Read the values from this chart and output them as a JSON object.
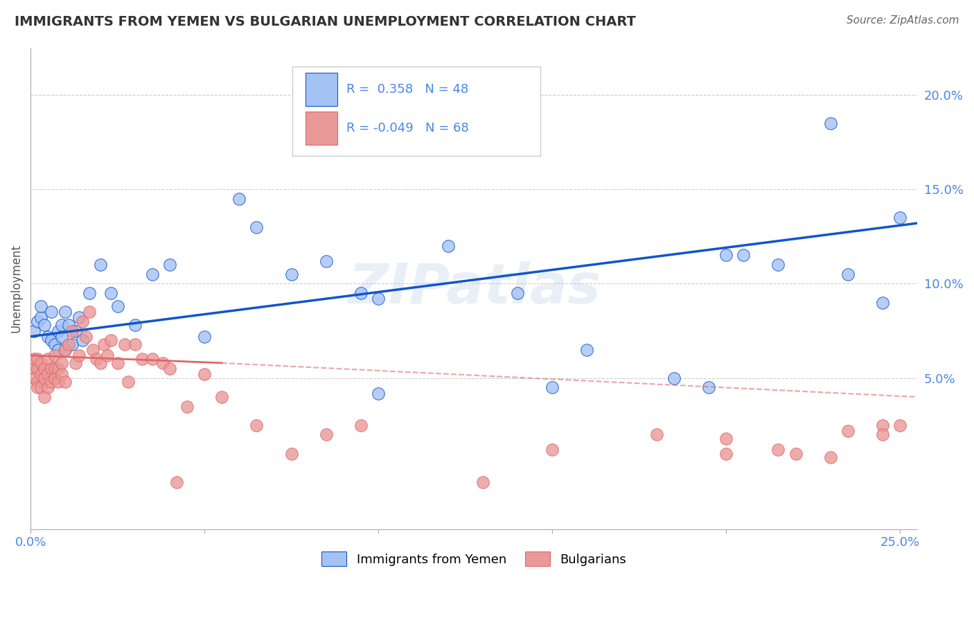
{
  "title": "IMMIGRANTS FROM YEMEN VS BULGARIAN UNEMPLOYMENT CORRELATION CHART",
  "source": "Source: ZipAtlas.com",
  "ylabel": "Unemployment",
  "xlim": [
    0.0,
    0.255
  ],
  "ylim": [
    -0.03,
    0.225
  ],
  "x_tick_positions": [
    0.0,
    0.25
  ],
  "x_tick_labels": [
    "0.0%",
    "25.0%"
  ],
  "y_tick_labels_right": [
    "5.0%",
    "10.0%",
    "15.0%",
    "20.0%"
  ],
  "y_tick_values_right": [
    0.05,
    0.1,
    0.15,
    0.2
  ],
  "legend_label_1": "Immigrants from Yemen",
  "legend_label_2": "Bulgarians",
  "r1": "0.358",
  "n1": "48",
  "r2": "-0.049",
  "n2": "68",
  "color_yemen": "#a4c2f4",
  "color_bulgarian": "#ea9999",
  "color_line_yemen": "#1155cc",
  "color_line_bulgarian": "#e06666",
  "color_title": "#333333",
  "color_source": "#666666",
  "color_axis_labels": "#4a86e8",
  "watermark": "ZIPatlas",
  "background_color": "#ffffff",
  "grid_color": "#cccccc",
  "yemen_x": [
    0.001,
    0.002,
    0.003,
    0.003,
    0.004,
    0.005,
    0.006,
    0.006,
    0.007,
    0.008,
    0.008,
    0.009,
    0.009,
    0.01,
    0.01,
    0.011,
    0.012,
    0.013,
    0.014,
    0.015,
    0.017,
    0.02,
    0.023,
    0.025,
    0.03,
    0.035,
    0.04,
    0.06,
    0.065,
    0.075,
    0.085,
    0.095,
    0.1,
    0.12,
    0.14,
    0.15,
    0.185,
    0.195,
    0.205,
    0.215,
    0.23,
    0.235,
    0.245,
    0.25,
    0.2,
    0.16,
    0.1,
    0.05
  ],
  "yemen_y": [
    0.075,
    0.08,
    0.082,
    0.088,
    0.078,
    0.072,
    0.085,
    0.07,
    0.068,
    0.075,
    0.065,
    0.078,
    0.072,
    0.065,
    0.085,
    0.078,
    0.068,
    0.075,
    0.082,
    0.07,
    0.095,
    0.11,
    0.095,
    0.088,
    0.078,
    0.105,
    0.11,
    0.145,
    0.13,
    0.105,
    0.112,
    0.095,
    0.092,
    0.12,
    0.095,
    0.045,
    0.05,
    0.045,
    0.115,
    0.11,
    0.185,
    0.105,
    0.09,
    0.135,
    0.115,
    0.065,
    0.042,
    0.072
  ],
  "bulgarian_x": [
    0.001,
    0.001,
    0.001,
    0.002,
    0.002,
    0.002,
    0.002,
    0.003,
    0.003,
    0.003,
    0.004,
    0.004,
    0.004,
    0.005,
    0.005,
    0.005,
    0.006,
    0.006,
    0.007,
    0.007,
    0.007,
    0.008,
    0.008,
    0.009,
    0.009,
    0.01,
    0.01,
    0.011,
    0.012,
    0.013,
    0.014,
    0.015,
    0.016,
    0.017,
    0.018,
    0.019,
    0.02,
    0.021,
    0.022,
    0.023,
    0.025,
    0.027,
    0.028,
    0.03,
    0.032,
    0.035,
    0.038,
    0.04,
    0.042,
    0.045,
    0.05,
    0.055,
    0.065,
    0.075,
    0.085,
    0.095,
    0.13,
    0.15,
    0.18,
    0.2,
    0.22,
    0.235,
    0.245,
    0.25,
    0.2,
    0.215,
    0.23,
    0.245
  ],
  "bulgarian_y": [
    0.055,
    0.06,
    0.05,
    0.048,
    0.055,
    0.06,
    0.045,
    0.052,
    0.058,
    0.045,
    0.05,
    0.055,
    0.04,
    0.052,
    0.045,
    0.06,
    0.048,
    0.055,
    0.055,
    0.05,
    0.062,
    0.048,
    0.055,
    0.052,
    0.058,
    0.048,
    0.065,
    0.068,
    0.075,
    0.058,
    0.062,
    0.08,
    0.072,
    0.085,
    0.065,
    0.06,
    0.058,
    0.068,
    0.062,
    0.07,
    0.058,
    0.068,
    0.048,
    0.068,
    0.06,
    0.06,
    0.058,
    0.055,
    -0.005,
    0.035,
    0.052,
    0.04,
    0.025,
    0.01,
    0.02,
    0.025,
    -0.005,
    0.012,
    0.02,
    0.018,
    0.01,
    0.022,
    0.025,
    0.025,
    0.01,
    0.012,
    0.008,
    0.02
  ],
  "line_yemen_x0": 0.0,
  "line_yemen_y0": 0.072,
  "line_yemen_x1": 0.255,
  "line_yemen_y1": 0.132,
  "line_bulg_solid_x0": 0.0,
  "line_bulg_solid_y0": 0.062,
  "line_bulg_solid_x1": 0.055,
  "line_bulg_solid_y1": 0.058,
  "line_bulg_dash_x0": 0.055,
  "line_bulg_dash_y0": 0.058,
  "line_bulg_dash_x1": 0.255,
  "line_bulg_dash_y1": 0.04
}
